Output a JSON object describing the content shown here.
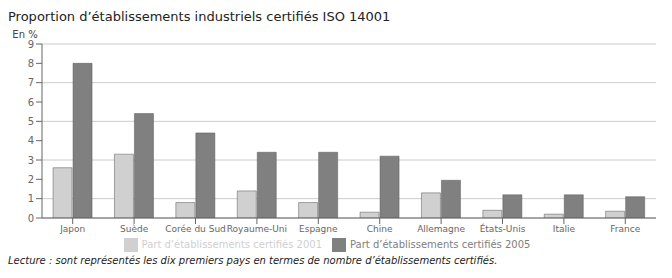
{
  "chart_data": {
    "type": "bar",
    "title": "Proportion d’établissements industriels certifiés ISO 14001",
    "ylabel": "En %",
    "footnote": "Lecture : sont représentés les dix premiers pays en termes de nombre d’établissements certifiés.",
    "categories": [
      "Japon",
      "Suède",
      "Corée du Sud",
      "Royaume-Uni",
      "Espagne",
      "Chine",
      "Allemagne",
      "États-Unis",
      "Italie",
      "France"
    ],
    "series": [
      {
        "name": "Part d’établissements certifiés 2001",
        "color": "#d0d0d0",
        "values": [
          2.6,
          3.3,
          0.8,
          1.4,
          0.8,
          0.3,
          1.3,
          0.4,
          0.2,
          0.35
        ]
      },
      {
        "name": "Part d’établissements certifiés 2005",
        "color": "#808080",
        "values": [
          8.0,
          5.4,
          4.4,
          3.4,
          3.4,
          3.2,
          1.95,
          1.2,
          1.2,
          1.1
        ]
      }
    ],
    "ylim": [
      0,
      9
    ],
    "yticks": [
      0,
      1,
      2,
      3,
      4,
      5,
      6,
      7,
      8,
      9
    ],
    "grid": true,
    "legend": "bottom"
  }
}
